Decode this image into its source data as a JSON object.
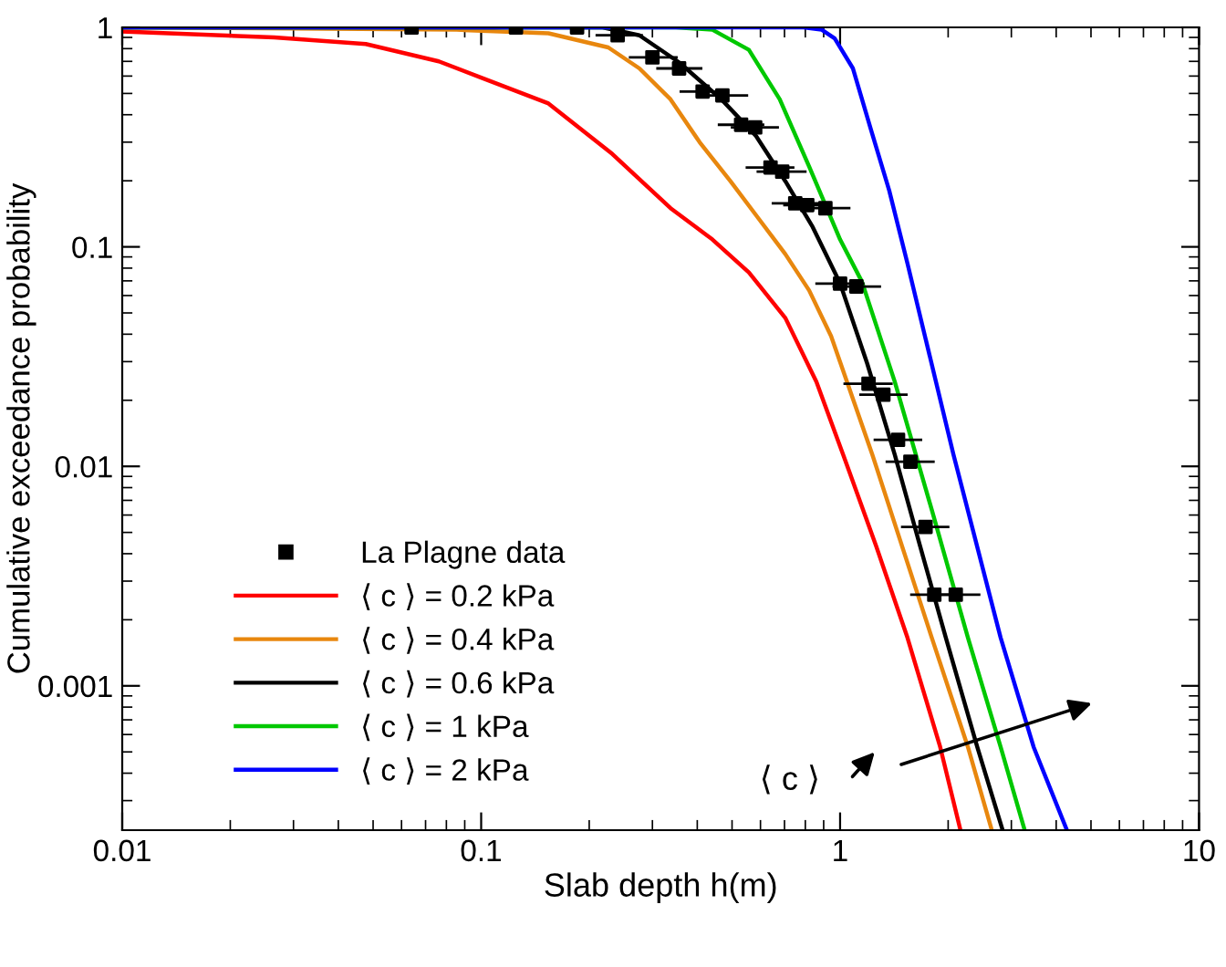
{
  "chart_data": {
    "type": "line",
    "xlabel": "Slab depth h(m)",
    "ylabel": "Cumulative exceedance probability",
    "log": "xy",
    "xlim": [
      0.01,
      10
    ],
    "ylim": [
      0.00022,
      1
    ],
    "xticks": [
      0.01,
      0.1,
      1,
      10
    ],
    "yticks": [
      0.001,
      0.01,
      0.1,
      1
    ],
    "legend": "bottom left",
    "grid": false,
    "annotations": [
      "⟨ c ⟩"
    ],
    "series": [
      {
        "name": "La Plagne data",
        "type": "scatter",
        "marker": "square",
        "color": "#000000",
        "x": [
          0.064,
          0.125,
          0.185,
          0.24,
          0.3,
          0.356,
          0.414,
          0.47,
          0.53,
          0.58,
          0.64,
          0.69,
          0.75,
          0.81,
          0.91,
          1.0,
          1.11,
          1.2,
          1.32,
          1.45,
          1.57,
          1.73,
          1.83,
          2.1
        ],
        "values": [
          1,
          1,
          1,
          0.92,
          0.73,
          0.65,
          0.51,
          0.49,
          0.36,
          0.35,
          0.23,
          0.22,
          0.158,
          0.155,
          0.15,
          0.068,
          0.066,
          0.0238,
          0.0212,
          0.0132,
          0.0105,
          0.0053,
          0.0026,
          0.0026
        ],
        "xerrors": [
          null,
          null,
          null,
          [
            0.21,
            0.28
          ],
          [
            0.26,
            0.35
          ],
          [
            0.31,
            0.41
          ],
          [
            0.36,
            0.48
          ],
          [
            0.41,
            0.55
          ],
          [
            0.46,
            0.61
          ],
          [
            0.5,
            0.67
          ],
          [
            0.55,
            0.74
          ],
          [
            0.59,
            0.8
          ],
          [
            0.65,
            0.87
          ],
          [
            0.7,
            0.94
          ],
          [
            0.78,
            1.06
          ],
          [
            0.86,
            1.16
          ],
          [
            0.96,
            1.29
          ],
          [
            1.03,
            1.39
          ],
          [
            1.14,
            1.53
          ],
          [
            1.25,
            1.68
          ],
          [
            1.35,
            1.82
          ],
          [
            1.49,
            2.0
          ],
          [
            1.58,
            2.12
          ],
          [
            1.81,
            2.44
          ]
        ]
      },
      {
        "name": "⟨ c ⟩ = 0.2 kPa",
        "color": "#ff0000",
        "x": [
          0.01,
          0.0265,
          0.0477,
          0.0762,
          0.1,
          0.154,
          0.232,
          0.337,
          0.441,
          0.557,
          0.704,
          0.859,
          1.02,
          1.26,
          1.54,
          1.9,
          2.16
        ],
        "values": [
          0.957,
          0.9,
          0.84,
          0.7,
          0.59,
          0.45,
          0.265,
          0.15,
          0.108,
          0.0765,
          0.0474,
          0.0243,
          0.0113,
          0.00434,
          0.00166,
          0.000527,
          0.000223
        ]
      },
      {
        "name": "⟨ c ⟩ = 0.4 kPa",
        "color": "#e8870e",
        "x": [
          0.01,
          0.0855,
          0.154,
          0.226,
          0.276,
          0.337,
          0.406,
          0.495,
          0.59,
          0.704,
          0.82,
          0.944,
          1.23,
          1.8,
          2.27,
          2.64
        ],
        "values": [
          1,
          0.975,
          0.94,
          0.81,
          0.65,
          0.47,
          0.3,
          0.199,
          0.136,
          0.0926,
          0.0633,
          0.0392,
          0.0113,
          0.00166,
          0.000527,
          0.000223
        ]
      },
      {
        "name": "⟨ c ⟩ = 0.6 kPa",
        "color": "#000000",
        "x": [
          0.01,
          0.218,
          0.276,
          0.357,
          0.467,
          0.583,
          0.704,
          0.839,
          1.0,
          1.19,
          1.42,
          1.67,
          1.97,
          2.41,
          2.83
        ],
        "values": [
          1,
          1,
          0.92,
          0.69,
          0.47,
          0.32,
          0.199,
          0.123,
          0.0682,
          0.0294,
          0.0113,
          0.00434,
          0.00166,
          0.000527,
          0.000223
        ]
      },
      {
        "name": "⟨ c ⟩ = 1 kPa",
        "color": "#00c800",
        "x": [
          0.01,
          0.349,
          0.441,
          0.557,
          0.679,
          0.82,
          1.0,
          1.15,
          1.42,
          1.8,
          2.27,
          2.8,
          3.26
        ],
        "values": [
          1,
          1,
          0.975,
          0.79,
          0.47,
          0.232,
          0.108,
          0.0695,
          0.0243,
          0.00635,
          0.00166,
          0.000527,
          0.000223
        ]
      },
      {
        "name": "⟨ c ⟩ = 2 kPa",
        "color": "#0000ff",
        "x": [
          0.01,
          0.791,
          0.889,
          0.966,
          1.086,
          1.22,
          1.37,
          1.54,
          2.07,
          2.8,
          3.46,
          4.27
        ],
        "values": [
          1,
          1,
          0.975,
          0.89,
          0.65,
          0.34,
          0.181,
          0.0842,
          0.0113,
          0.00166,
          0.000527,
          0.000223
        ]
      }
    ]
  }
}
